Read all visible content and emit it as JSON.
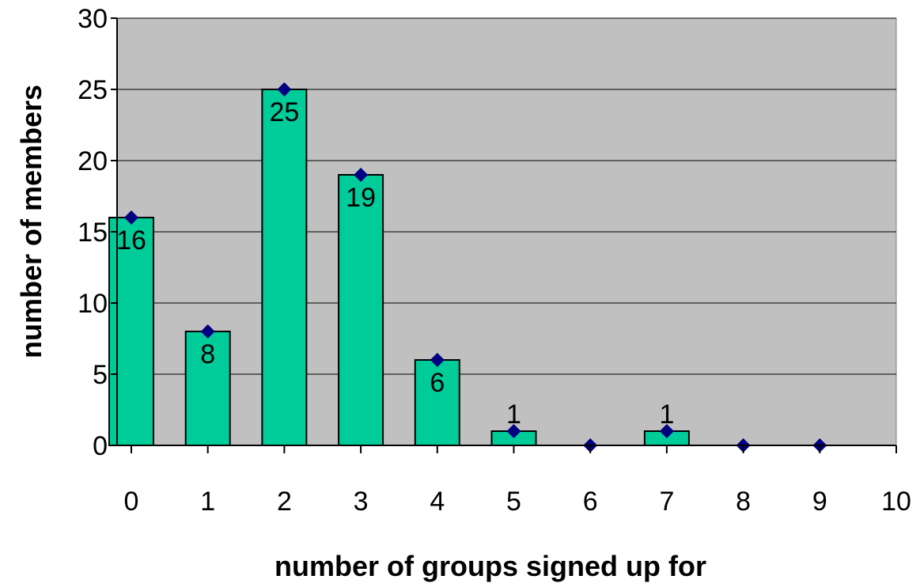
{
  "chart_data": {
    "type": "bar",
    "title": "",
    "xlabel": "number of groups signed up for",
    "ylabel": "number of members",
    "xlim": [
      0,
      10
    ],
    "ylim": [
      0,
      30
    ],
    "x_ticks": [
      "0",
      "1",
      "2",
      "3",
      "4",
      "5",
      "6",
      "7",
      "8",
      "9",
      "10"
    ],
    "y_ticks": [
      "0",
      "5",
      "10",
      "15",
      "20",
      "25",
      "30"
    ],
    "grid": "horizontal",
    "legend": "none",
    "bars": [
      {
        "x": 0,
        "value": 16,
        "label": "16"
      },
      {
        "x": 1,
        "value": 8,
        "label": "8"
      },
      {
        "x": 2,
        "value": 25,
        "label": "25"
      },
      {
        "x": 3,
        "value": 19,
        "label": "19"
      },
      {
        "x": 4,
        "value": 6,
        "label": "6"
      },
      {
        "x": 5,
        "value": 1,
        "label": "1"
      },
      {
        "x": 7,
        "value": 1,
        "label": "1"
      }
    ],
    "markers": [
      {
        "x": 0,
        "y": 16
      },
      {
        "x": 1,
        "y": 8
      },
      {
        "x": 2,
        "y": 25
      },
      {
        "x": 3,
        "y": 19
      },
      {
        "x": 4,
        "y": 6
      },
      {
        "x": 5,
        "y": 1
      },
      {
        "x": 6,
        "y": 0
      },
      {
        "x": 7,
        "y": 1
      },
      {
        "x": 8,
        "y": 0
      },
      {
        "x": 9,
        "y": 0
      }
    ],
    "colors": {
      "plot_background": "#c0c0c0",
      "bar_fill": "#00cc99",
      "marker": "#000080",
      "gridline": "#000000"
    }
  }
}
